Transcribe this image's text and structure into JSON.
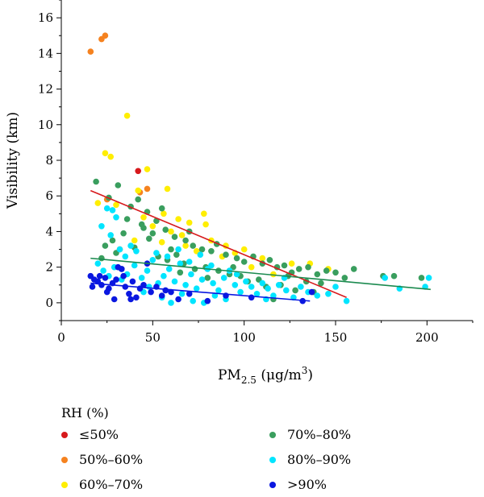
{
  "chart_data": {
    "type": "scatter",
    "xlabel": "PM",
    "xlabel_sub": "2.5",
    "xlabel_unit_open": " (μg/m",
    "xlabel_unit_sup": "3",
    "xlabel_unit_close": ")",
    "ylabel": "Visibility (km)",
    "xlim": [
      0,
      225
    ],
    "ylim": [
      -1,
      17
    ],
    "xticks": [
      0,
      50,
      100,
      150,
      200
    ],
    "yticks": [
      0,
      2,
      4,
      6,
      8,
      10,
      12,
      14,
      16
    ],
    "grid": false,
    "legend_title": "RH (%)",
    "legend_position": "bottom",
    "series": [
      {
        "name": "≤50%",
        "color": "#d7191c",
        "points": [
          [
            42,
            7.4
          ]
        ],
        "trend": [
          [
            16,
            6.3
          ],
          [
            156,
            0.3
          ]
        ]
      },
      {
        "name": "50%–60%",
        "color": "#f5821f",
        "points": [
          [
            22,
            14.8
          ],
          [
            24,
            15.0
          ],
          [
            16,
            14.1
          ],
          [
            47,
            6.4
          ],
          [
            43,
            6.2
          ],
          [
            32,
            3.0
          ],
          [
            25,
            5.8
          ]
        ]
      },
      {
        "name": "60%–70%",
        "color": "#ffee00",
        "points": [
          [
            36,
            10.5
          ],
          [
            24,
            8.4
          ],
          [
            27,
            8.2
          ],
          [
            47,
            7.5
          ],
          [
            42,
            6.3
          ],
          [
            58,
            6.4
          ],
          [
            78,
            5.0
          ],
          [
            20,
            5.6
          ],
          [
            30,
            5.5
          ],
          [
            56,
            5.0
          ],
          [
            64,
            4.7
          ],
          [
            70,
            4.5
          ],
          [
            79,
            4.4
          ],
          [
            50,
            4.3
          ],
          [
            60,
            4.0
          ],
          [
            82,
            3.5
          ],
          [
            90,
            3.2
          ],
          [
            100,
            3.0
          ],
          [
            110,
            2.5
          ],
          [
            126,
            2.2
          ],
          [
            136,
            2.2
          ],
          [
            146,
            1.9
          ],
          [
            40,
            3.5
          ],
          [
            66,
            3.8
          ],
          [
            74,
            2.9
          ],
          [
            88,
            2.6
          ],
          [
            95,
            2.8
          ],
          [
            116,
            1.6
          ],
          [
            104,
            2.0
          ],
          [
            55,
            3.4
          ],
          [
            45,
            4.8
          ],
          [
            68,
            3.2
          ]
        ]
      },
      {
        "name": "70%–80%",
        "color": "#3a9e5e",
        "points": [
          [
            19,
            6.8
          ],
          [
            26,
            5.9
          ],
          [
            31,
            6.6
          ],
          [
            38,
            5.4
          ],
          [
            42,
            5.8
          ],
          [
            47,
            5.1
          ],
          [
            52,
            4.6
          ],
          [
            55,
            5.3
          ],
          [
            36,
            4.7
          ],
          [
            45,
            4.2
          ],
          [
            57,
            4.1
          ],
          [
            62,
            3.7
          ],
          [
            68,
            3.5
          ],
          [
            72,
            3.2
          ],
          [
            77,
            3.0
          ],
          [
            82,
            2.9
          ],
          [
            85,
            3.3
          ],
          [
            90,
            2.7
          ],
          [
            96,
            2.5
          ],
          [
            100,
            2.3
          ],
          [
            105,
            2.6
          ],
          [
            110,
            2.2
          ],
          [
            114,
            2.4
          ],
          [
            118,
            2.0
          ],
          [
            122,
            2.1
          ],
          [
            126,
            1.7
          ],
          [
            130,
            1.9
          ],
          [
            135,
            2.0
          ],
          [
            140,
            1.6
          ],
          [
            145,
            1.8
          ],
          [
            150,
            1.7
          ],
          [
            155,
            1.4
          ],
          [
            160,
            1.9
          ],
          [
            176,
            1.5
          ],
          [
            182,
            1.5
          ],
          [
            197,
            1.4
          ],
          [
            24,
            3.2
          ],
          [
            30,
            2.8
          ],
          [
            34,
            3.9
          ],
          [
            40,
            3.1
          ],
          [
            48,
            3.6
          ],
          [
            53,
            2.6
          ],
          [
            58,
            2.4
          ],
          [
            63,
            2.7
          ],
          [
            67,
            2.2
          ],
          [
            73,
            1.9
          ],
          [
            79,
            2.0
          ],
          [
            86,
            1.8
          ],
          [
            92,
            1.6
          ],
          [
            98,
            1.5
          ],
          [
            102,
            1.2
          ],
          [
            108,
            1.3
          ],
          [
            112,
            0.9
          ],
          [
            120,
            1.0
          ],
          [
            128,
            0.7
          ],
          [
            134,
            1.2
          ],
          [
            142,
            1.1
          ],
          [
            116,
            0.2
          ],
          [
            70,
            4.0
          ],
          [
            60,
            3.0
          ],
          [
            50,
            3.9
          ],
          [
            44,
            4.4
          ],
          [
            28,
            3.5
          ],
          [
            22,
            2.5
          ],
          [
            33,
            1.9
          ],
          [
            80,
            1.4
          ],
          [
            94,
            2.0
          ],
          [
            124,
            1.5
          ],
          [
            138,
            0.6
          ],
          [
            65,
            1.7
          ]
        ]
      },
      {
        "name": "80%–90%",
        "color": "#00e5ff",
        "points": [
          [
            25,
            5.3
          ],
          [
            28,
            5.2
          ],
          [
            30,
            4.8
          ],
          [
            22,
            4.3
          ],
          [
            27,
            3.8
          ],
          [
            32,
            3.0
          ],
          [
            35,
            2.6
          ],
          [
            38,
            3.2
          ],
          [
            41,
            2.9
          ],
          [
            20,
            2.2
          ],
          [
            23,
            1.8
          ],
          [
            26,
            1.5
          ],
          [
            29,
            2.0
          ],
          [
            33,
            1.3
          ],
          [
            36,
            1.6
          ],
          [
            40,
            2.1
          ],
          [
            44,
            1.4
          ],
          [
            47,
            1.8
          ],
          [
            50,
            2.4
          ],
          [
            53,
            1.1
          ],
          [
            56,
            1.5
          ],
          [
            59,
            1.9
          ],
          [
            62,
            1.2
          ],
          [
            65,
            2.2
          ],
          [
            68,
            1.0
          ],
          [
            71,
            1.6
          ],
          [
            74,
            0.8
          ],
          [
            77,
            1.3
          ],
          [
            80,
            1.9
          ],
          [
            83,
            1.1
          ],
          [
            86,
            0.7
          ],
          [
            89,
            1.4
          ],
          [
            92,
            1.8
          ],
          [
            95,
            1.0
          ],
          [
            98,
            0.6
          ],
          [
            101,
            1.2
          ],
          [
            104,
            0.9
          ],
          [
            107,
            0.5
          ],
          [
            110,
            1.1
          ],
          [
            113,
            0.8
          ],
          [
            116,
            0.4
          ],
          [
            119,
            1.0
          ],
          [
            123,
            0.7
          ],
          [
            127,
            0.3
          ],
          [
            131,
            0.9
          ],
          [
            135,
            0.6
          ],
          [
            140,
            0.4
          ],
          [
            146,
            0.5
          ],
          [
            150,
            0.9
          ],
          [
            156,
            0.1
          ],
          [
            177,
            1.4
          ],
          [
            185,
            0.8
          ],
          [
            199,
            0.9
          ],
          [
            201,
            1.4
          ],
          [
            45,
            0.6
          ],
          [
            55,
            0.3
          ],
          [
            60,
            0.0
          ],
          [
            66,
            0.5
          ],
          [
            72,
            0.1
          ],
          [
            78,
            0.0
          ],
          [
            84,
            0.4
          ],
          [
            90,
            0.2
          ],
          [
            52,
            2.8
          ],
          [
            58,
            2.6
          ],
          [
            64,
            3.0
          ],
          [
            70,
            2.3
          ],
          [
            76,
            2.7
          ],
          [
            82,
            2.1
          ],
          [
            48,
            0.9
          ],
          [
            96,
            1.6
          ],
          [
            112,
            0.2
          ],
          [
            122,
            1.4
          ]
        ]
      },
      {
        "name": ">90%",
        "color": "#0a17e0",
        "points": [
          [
            16,
            1.5
          ],
          [
            18,
            1.3
          ],
          [
            20,
            1.2
          ],
          [
            22,
            1.0
          ],
          [
            24,
            1.4
          ],
          [
            26,
            0.8
          ],
          [
            28,
            1.1
          ],
          [
            30,
            1.3
          ],
          [
            31,
            2.0
          ],
          [
            33,
            1.9
          ],
          [
            35,
            0.9
          ],
          [
            37,
            0.5
          ],
          [
            39,
            1.2
          ],
          [
            41,
            0.3
          ],
          [
            43,
            0.8
          ],
          [
            45,
            1.0
          ],
          [
            47,
            2.2
          ],
          [
            49,
            0.6
          ],
          [
            52,
            0.9
          ],
          [
            55,
            0.4
          ],
          [
            57,
            0.7
          ],
          [
            60,
            0.6
          ],
          [
            64,
            0.2
          ],
          [
            70,
            0.5
          ],
          [
            80,
            0.1
          ],
          [
            90,
            0.4
          ],
          [
            104,
            0.3
          ],
          [
            132,
            0.1
          ],
          [
            137,
            0.6
          ],
          [
            17,
            0.9
          ],
          [
            21,
            1.5
          ],
          [
            25,
            0.6
          ],
          [
            29,
            0.2
          ],
          [
            34,
            1.5
          ],
          [
            38,
            0.2
          ]
        ],
        "trend": [
          [
            16,
            1.1
          ],
          [
            136,
            0.1
          ]
        ]
      }
    ],
    "extra_trends": [
      {
        "color": "#1b8a4f",
        "line": [
          [
            16,
            2.5
          ],
          [
            202,
            0.75
          ]
        ]
      }
    ]
  }
}
